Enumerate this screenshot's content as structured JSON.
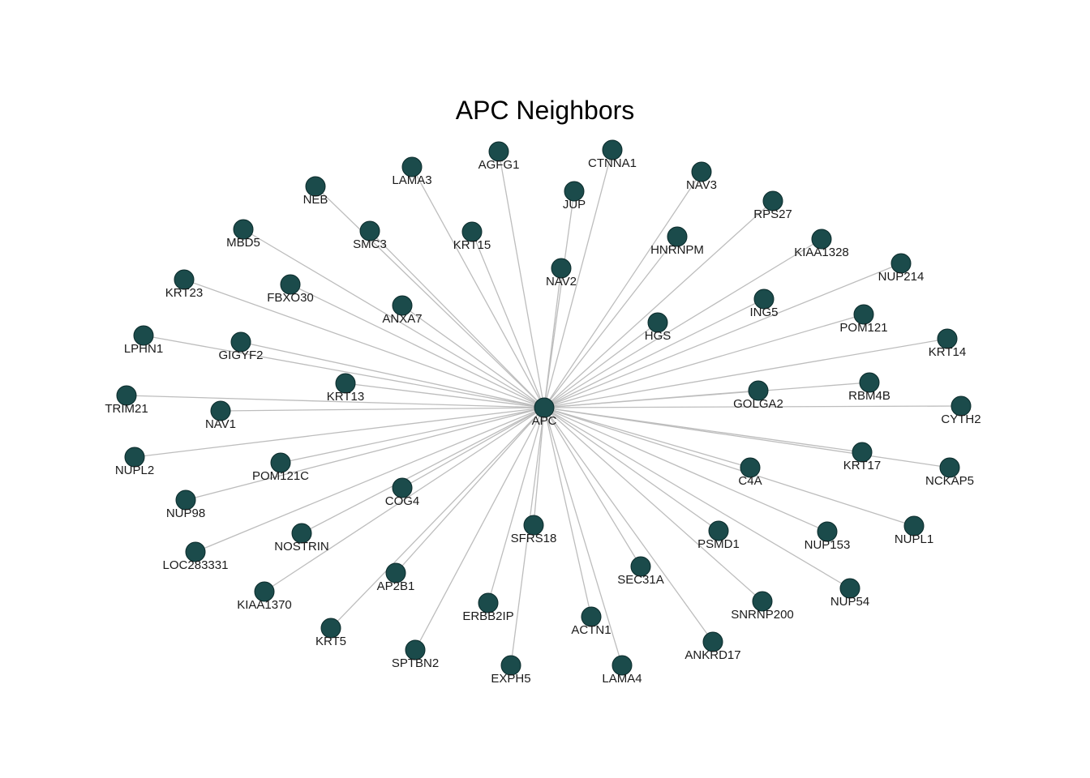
{
  "diagram": {
    "title": "APC Neighbors",
    "colors": {
      "node": "#1b4b4b",
      "edge": "#bdbdbd",
      "text": "#1a1a1a"
    },
    "center": "APC",
    "neighbors": [
      "AGFG1",
      "CTNNA1",
      "LAMA3",
      "JUP",
      "NAV3",
      "NEB",
      "RPS27",
      "MBD5",
      "SMC3",
      "KRT15",
      "HNRNPM",
      "KIAA1328",
      "NAV2",
      "NUP214",
      "KRT23",
      "FBXO30",
      "ANXA7",
      "ING5",
      "POM121",
      "HGS",
      "LPHN1",
      "GIGYF2",
      "KRT14",
      "KRT13",
      "RBM4B",
      "GOLGA2",
      "TRIM21",
      "NAV1",
      "CYTH2",
      "NUPL2",
      "KRT17",
      "POM121C",
      "C4A",
      "NCKAP5",
      "NUP98",
      "COG4",
      "SFRS18",
      "NUPL1",
      "PSMD1",
      "NUP153",
      "NOSTRIN",
      "LOC283331",
      "AP2B1",
      "SEC31A",
      "KIAA1370",
      "NUP54",
      "ERBB2IP",
      "SNRNP200",
      "ACTN1",
      "KRT5",
      "ANKRD17",
      "SPTBN2",
      "EXPH5",
      "LAMA4"
    ]
  }
}
